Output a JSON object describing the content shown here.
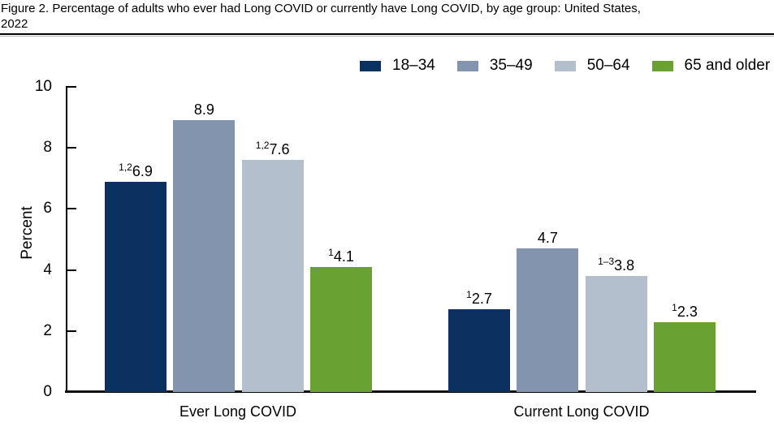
{
  "figure": {
    "title_lines": [
      "Figure 2. Percentage of adults who ever had Long COVID or currently have Long COVID, by age group: United States,",
      "2022"
    ]
  },
  "chart_data": {
    "type": "bar",
    "title": "Figure 2. Percentage of adults who ever had Long COVID or currently have Long COVID, by age group: United States, 2022",
    "ylabel": "Percent",
    "xlabel": "",
    "ylim": [
      0,
      10
    ],
    "yticks": [
      0,
      2,
      4,
      6,
      8,
      10
    ],
    "grid": false,
    "legend_position": "top-right",
    "axis_color": "#000000",
    "categories": [
      "Ever Long COVID",
      "Current Long COVID"
    ],
    "series": [
      {
        "name": "18–34",
        "color": "#0a3160",
        "values": [
          6.9,
          2.7
        ],
        "label_prefixes": [
          "1,2",
          "1"
        ]
      },
      {
        "name": "35–49",
        "color": "#8395ae",
        "values": [
          8.9,
          4.7
        ],
        "label_prefixes": [
          "",
          ""
        ]
      },
      {
        "name": "50–64",
        "color": "#b4bfce",
        "values": [
          7.6,
          3.8
        ],
        "label_prefixes": [
          "1,2",
          "1–3"
        ]
      },
      {
        "name": "65 and older",
        "color": "#69a233",
        "values": [
          4.1,
          2.3
        ],
        "label_prefixes": [
          "1",
          "1"
        ]
      }
    ]
  }
}
